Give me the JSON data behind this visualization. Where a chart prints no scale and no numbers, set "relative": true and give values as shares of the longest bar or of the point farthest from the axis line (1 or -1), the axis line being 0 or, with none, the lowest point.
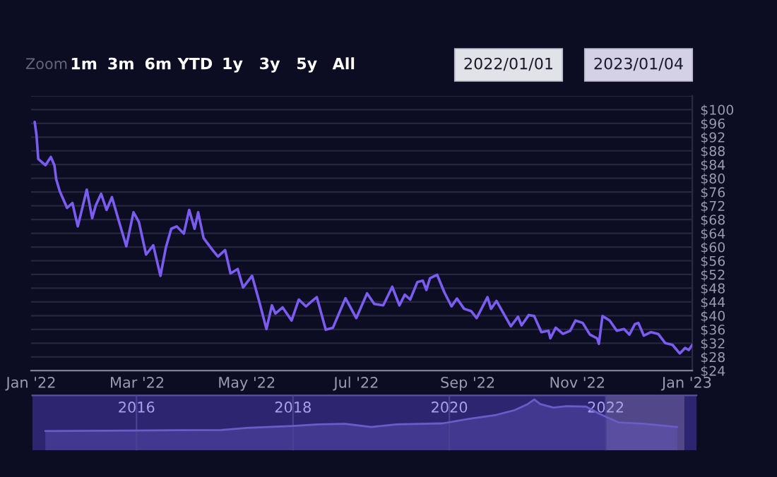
{
  "chart_data": [
    {
      "type": "line",
      "x": [
        "2022-01-03",
        "2022-01-04",
        "2022-01-05",
        "2022-01-09",
        "2022-01-12",
        "2022-01-14",
        "2022-01-15",
        "2022-01-17",
        "2022-01-21",
        "2022-01-24",
        "2022-01-27",
        "2022-02-01",
        "2022-02-04",
        "2022-02-06",
        "2022-02-09",
        "2022-02-12",
        "2022-02-15",
        "2022-02-19",
        "2022-02-23",
        "2022-02-27",
        "2022-03-02",
        "2022-03-06",
        "2022-03-10",
        "2022-03-14",
        "2022-03-17",
        "2022-03-20",
        "2022-03-23",
        "2022-03-27",
        "2022-03-30",
        "2022-04-02",
        "2022-04-04",
        "2022-04-07",
        "2022-04-12",
        "2022-04-15",
        "2022-04-19",
        "2022-04-22",
        "2022-04-26",
        "2022-04-29",
        "2022-05-04",
        "2022-05-08",
        "2022-05-12",
        "2022-05-15",
        "2022-05-17",
        "2022-05-21",
        "2022-05-26",
        "2022-05-30",
        "2022-06-03",
        "2022-06-06",
        "2022-06-09",
        "2022-06-14",
        "2022-06-18",
        "2022-06-25",
        "2022-07-01",
        "2022-07-07",
        "2022-07-11",
        "2022-07-16",
        "2022-07-21",
        "2022-07-25",
        "2022-07-28",
        "2022-07-31",
        "2022-08-04",
        "2022-08-07",
        "2022-08-09",
        "2022-08-11",
        "2022-08-15",
        "2022-08-19",
        "2022-08-23",
        "2022-08-26",
        "2022-08-30",
        "2022-09-03",
        "2022-09-06",
        "2022-09-12",
        "2022-09-14",
        "2022-09-17",
        "2022-09-25",
        "2022-09-29",
        "2022-10-01",
        "2022-10-05",
        "2022-10-08",
        "2022-10-12",
        "2022-10-16",
        "2022-10-17",
        "2022-10-20",
        "2022-10-24",
        "2022-10-28",
        "2022-10-31",
        "2022-11-04",
        "2022-11-08",
        "2022-11-12",
        "2022-11-13",
        "2022-11-15",
        "2022-11-19",
        "2022-11-23",
        "2022-11-27",
        "2022-11-30",
        "2022-12-03",
        "2022-12-05",
        "2022-12-08",
        "2022-12-12",
        "2022-12-16",
        "2022-12-20",
        "2022-12-24",
        "2022-12-28",
        "2022-12-31",
        "2023-01-02",
        "2023-01-04"
      ],
      "series": [
        {
          "color": "#7b5cf0",
          "values": [
            96.4,
            92.7,
            85.6,
            83.8,
            86.2,
            83.8,
            79.7,
            76.2,
            71.4,
            72.8,
            66.0,
            76.7,
            68.4,
            72.1,
            75.5,
            70.8,
            74.5,
            67.3,
            60.2,
            70.1,
            67.3,
            57.8,
            60.5,
            51.6,
            59.8,
            65.3,
            66.0,
            63.9,
            70.8,
            65.3,
            70.1,
            62.6,
            59.1,
            57.2,
            59.1,
            52.3,
            53.6,
            48.2,
            51.6,
            44.1,
            36.1,
            43.0,
            40.6,
            42.4,
            38.6,
            44.7,
            42.7,
            44.1,
            45.4,
            35.9,
            36.5,
            45.1,
            39.3,
            46.5,
            43.4,
            43.0,
            48.4,
            43.0,
            46.1,
            44.7,
            49.8,
            50.2,
            47.5,
            50.9,
            51.9,
            46.8,
            42.7,
            45.0,
            42.0,
            41.3,
            39.3,
            45.4,
            42.0,
            44.3,
            36.9,
            39.7,
            37.2,
            40.2,
            39.9,
            35.2,
            35.6,
            33.4,
            36.5,
            34.7,
            35.6,
            38.6,
            37.9,
            34.5,
            33.4,
            31.8,
            39.9,
            38.6,
            35.6,
            36.1,
            34.5,
            37.5,
            37.9,
            34.2,
            35.2,
            34.7,
            32.0,
            31.5,
            29.0,
            30.6,
            30.0,
            31.5
          ]
        }
      ],
      "xlim": [
        "2022-01-01",
        "2023-01-04"
      ],
      "xticks": [
        {
          "value": "2022-01-01",
          "label": "Jan '22"
        },
        {
          "value": "2022-03-01",
          "label": "Mar '22"
        },
        {
          "value": "2022-05-01",
          "label": "May '22"
        },
        {
          "value": "2022-07-01",
          "label": "Jul '22"
        },
        {
          "value": "2022-09-01",
          "label": "Sep '22"
        },
        {
          "value": "2022-11-01",
          "label": "Nov '22"
        },
        {
          "value": "2023-01-01",
          "label": "Jan '23"
        }
      ],
      "ylim": [
        24,
        104
      ],
      "yticks": [
        {
          "value": 24,
          "label": "$24"
        },
        {
          "value": 28,
          "label": "$28"
        },
        {
          "value": 32,
          "label": "$32"
        },
        {
          "value": 36,
          "label": "$36"
        },
        {
          "value": 40,
          "label": "$40"
        },
        {
          "value": 44,
          "label": "$44"
        },
        {
          "value": 48,
          "label": "$48"
        },
        {
          "value": 52,
          "label": "$52"
        },
        {
          "value": 56,
          "label": "$56"
        },
        {
          "value": 60,
          "label": "$60"
        },
        {
          "value": 64,
          "label": "$64"
        },
        {
          "value": 68,
          "label": "$68"
        },
        {
          "value": 72,
          "label": "$72"
        },
        {
          "value": 76,
          "label": "$76"
        },
        {
          "value": 80,
          "label": "$80"
        },
        {
          "value": 84,
          "label": "$84"
        },
        {
          "value": 88,
          "label": "$88"
        },
        {
          "value": 92,
          "label": "$92"
        },
        {
          "value": 96,
          "label": "$96"
        },
        {
          "value": 100,
          "label": "$100"
        },
        {
          "value": 104,
          "label": null
        }
      ],
      "grid": "y",
      "annotations": [
        "Zoom",
        "1m",
        "3m",
        "6m",
        "YTD",
        "1y",
        "3y",
        "5y",
        "All",
        "2022/01/01",
        "2023/01/04"
      ]
    },
    {
      "type": "area",
      "relative": true,
      "x": [
        "2014-11",
        "2016-01",
        "2017-02",
        "2017-06",
        "2018-01",
        "2018-05",
        "2018-09",
        "2019-01",
        "2019-05",
        "2019-12",
        "2020-04",
        "2020-08",
        "2020-11",
        "2021-01",
        "2021-02",
        "2021-03",
        "2021-05",
        "2021-07",
        "2021-10",
        "2021-12",
        "2022-03",
        "2022-07",
        "2022-12"
      ],
      "series": [
        {
          "color": "#6a5cc8",
          "values": [
            0.38,
            0.39,
            0.4,
            0.44,
            0.48,
            0.51,
            0.52,
            0.46,
            0.51,
            0.53,
            0.62,
            0.69,
            0.79,
            0.91,
            1,
            0.91,
            0.84,
            0.87,
            0.86,
            0.72,
            0.55,
            0.52,
            0.46
          ]
        }
      ],
      "xlim": [
        "2014-09",
        "2023-03"
      ],
      "xticks": [
        {
          "value": "2016-01-01",
          "label": "2016"
        },
        {
          "value": "2018-01-01",
          "label": "2018"
        },
        {
          "value": "2020-01-01",
          "label": "2020"
        },
        {
          "value": "2022-01-01",
          "label": "2022"
        }
      ],
      "grid": "x",
      "bands": [
        {
          "axis": "x",
          "from": "2014-09",
          "to": "2022-01-01",
          "color": "#2d2570"
        },
        {
          "axis": "x",
          "from": "2022-01-01",
          "to": "2023-01-04",
          "color": "#514789"
        },
        {
          "axis": "x",
          "from": "2023-01-04",
          "to": "2023-03",
          "color": "#2d2570"
        }
      ]
    }
  ]
}
